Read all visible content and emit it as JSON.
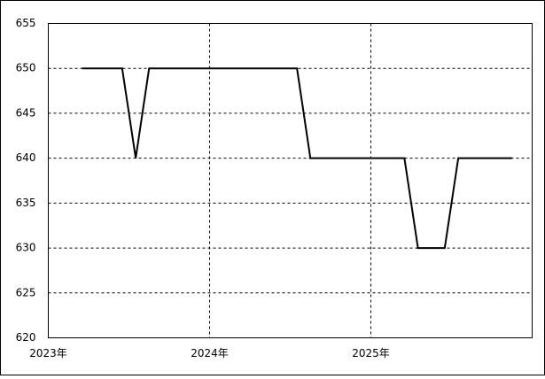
{
  "chart_data": {
    "type": "line",
    "x": [
      2023.208,
      2023.292,
      2023.375,
      2023.458,
      2023.542,
      2023.625,
      2023.708,
      2023.792,
      2023.875,
      2023.958,
      2024.042,
      2024.125,
      2024.208,
      2024.292,
      2024.375,
      2024.458,
      2024.542,
      2024.625,
      2024.708,
      2024.792,
      2024.875,
      2024.958,
      2025.042,
      2025.125,
      2025.208,
      2025.292,
      2025.375,
      2025.458,
      2025.542,
      2025.625,
      2025.708,
      2025.792,
      2025.875
    ],
    "values": [
      650,
      650,
      650,
      650,
      640,
      650,
      650,
      650,
      650,
      650,
      650,
      650,
      650,
      650,
      650,
      650,
      650,
      640,
      640,
      640,
      640,
      640,
      640,
      640,
      640,
      630,
      630,
      630,
      640,
      640,
      640,
      640,
      640
    ],
    "color": "#000000",
    "xlim": [
      2023,
      2026
    ],
    "xticks": [
      {
        "value": 2023,
        "label": "2023年"
      },
      {
        "value": 2024,
        "label": "2024年"
      },
      {
        "value": 2025,
        "label": "2025年"
      }
    ],
    "ylim": [
      620,
      655
    ],
    "yticks": [
      620,
      625,
      630,
      635,
      640,
      645,
      650,
      655
    ],
    "grid": true
  }
}
